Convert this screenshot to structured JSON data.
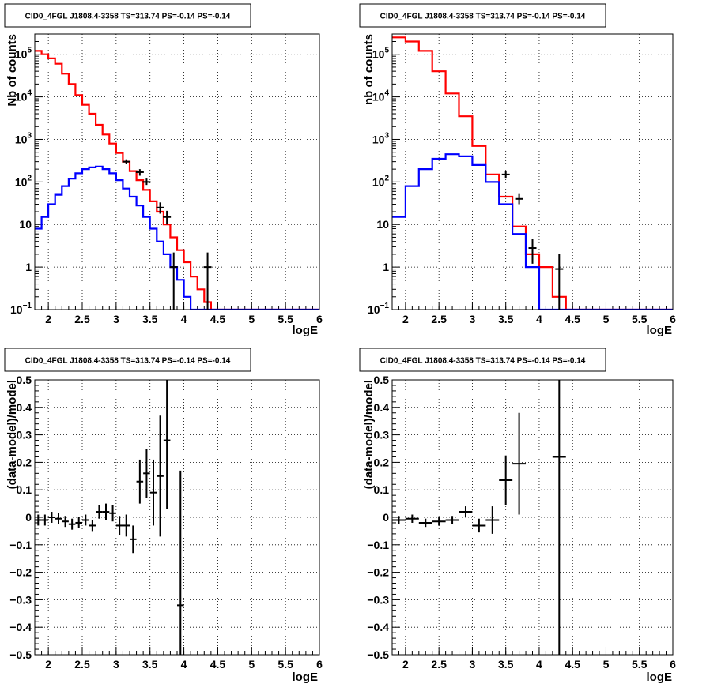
{
  "chart_data": [
    {
      "type": "line",
      "title": "CID0_4FGL J1808.4-3358 TS=313.74 PS=-0.14 PS=-0.14",
      "xlabel": "logE",
      "ylabel": "Nb of counts",
      "xlim": [
        1.8,
        6.0
      ],
      "ylim": [
        0.1,
        300000
      ],
      "yscale": "log",
      "grid": true,
      "x_ticks": [
        "2",
        "2.5",
        "3",
        "3.5",
        "4",
        "4.5",
        "5",
        "5.5",
        "6"
      ],
      "y_ticks": [
        {
          "base": "10",
          "exp": "−1"
        },
        {
          "base": "1",
          "exp": ""
        },
        {
          "base": "10",
          "exp": ""
        },
        {
          "base": "10",
          "exp": "2"
        },
        {
          "base": "10",
          "exp": "3"
        },
        {
          "base": "10",
          "exp": "4"
        },
        {
          "base": "10",
          "exp": "5"
        }
      ],
      "bin_edges": [
        1.8,
        1.9,
        2.0,
        2.1,
        2.2,
        2.3,
        2.4,
        2.5,
        2.6,
        2.7,
        2.8,
        2.9,
        3.0,
        3.1,
        3.2,
        3.3,
        3.4,
        3.5,
        3.6,
        3.7,
        3.8,
        3.9,
        4.0,
        4.1,
        4.2,
        4.3,
        4.4,
        4.5,
        4.6,
        4.7,
        4.8,
        4.9,
        5.0,
        5.1,
        5.2,
        5.3,
        5.4,
        5.5,
        5.6,
        5.7,
        5.8,
        5.9,
        6.0
      ],
      "series": [
        {
          "color": "#ff0000",
          "values": [
            120000,
            100000,
            80000,
            60000,
            35000,
            20000,
            11000,
            6500,
            4000,
            2200,
            1300,
            800,
            480,
            300,
            180,
            110,
            65,
            35,
            20,
            10,
            5,
            2.5,
            1.3,
            0.6,
            0.3,
            0.15,
            0.1,
            0.1,
            0.1,
            0.1,
            0.1,
            0.1,
            0.1,
            0.1,
            0.1,
            0.1,
            0.1,
            0.1,
            0.1,
            0.1,
            0.1,
            0.1
          ]
        },
        {
          "color": "#0000ff",
          "values": [
            8,
            15,
            30,
            50,
            80,
            120,
            160,
            200,
            220,
            230,
            200,
            160,
            110,
            70,
            45,
            28,
            15,
            8,
            4,
            2,
            1,
            0.5,
            0.2,
            0.1,
            0.1,
            0.1,
            0.1,
            0.1,
            0.1,
            0.1,
            0.1,
            0.1,
            0.1,
            0.1,
            0.1,
            0.1,
            0.1,
            0.1,
            0.1,
            0.1,
            0.1,
            0.1
          ]
        }
      ],
      "points": [
        {
          "x": 3.15,
          "y": 300,
          "ylo": 260,
          "yhi": 340
        },
        {
          "x": 3.35,
          "y": 170,
          "ylo": 140,
          "yhi": 200
        },
        {
          "x": 3.45,
          "y": 100,
          "ylo": 85,
          "yhi": 120
        },
        {
          "x": 3.65,
          "y": 25,
          "ylo": 18,
          "yhi": 33
        },
        {
          "x": 3.75,
          "y": 15,
          "ylo": 10,
          "yhi": 21
        },
        {
          "x": 3.85,
          "y": 1,
          "ylo": 0.1,
          "yhi": 2.2
        },
        {
          "x": 4.35,
          "y": 1,
          "ylo": 0.1,
          "yhi": 2.2
        }
      ]
    },
    {
      "type": "line",
      "title": "CID0_4FGL J1808.4-3358 TS=313.74 PS=-0.14 PS=-0.14",
      "xlabel": "logE",
      "ylabel": "nb of counts",
      "xlim": [
        1.8,
        6.0
      ],
      "ylim": [
        0.1,
        300000
      ],
      "yscale": "log",
      "grid": true,
      "x_ticks": [
        "2",
        "2.5",
        "3",
        "3.5",
        "4",
        "4.5",
        "5",
        "5.5",
        "6"
      ],
      "y_ticks": [
        {
          "base": "10",
          "exp": "−1"
        },
        {
          "base": "1",
          "exp": ""
        },
        {
          "base": "10",
          "exp": ""
        },
        {
          "base": "10",
          "exp": "2"
        },
        {
          "base": "10",
          "exp": "3"
        },
        {
          "base": "10",
          "exp": "4"
        },
        {
          "base": "10",
          "exp": "5"
        }
      ],
      "bin_edges": [
        1.8,
        2.0,
        2.2,
        2.4,
        2.6,
        2.8,
        3.0,
        3.2,
        3.4,
        3.6,
        3.8,
        4.0,
        4.2,
        4.4,
        4.6,
        4.8,
        5.0,
        5.2,
        5.4,
        5.6,
        5.8,
        6.0
      ],
      "series": [
        {
          "color": "#ff0000",
          "values": [
            250000,
            200000,
            120000,
            40000,
            12000,
            3500,
            700,
            150,
            45,
            9,
            2,
            1,
            0.2,
            0.1,
            0.1,
            0.1,
            0.1,
            0.1,
            0.1,
            0.1,
            0.1
          ]
        },
        {
          "color": "#0000ff",
          "values": [
            15,
            80,
            200,
            350,
            450,
            400,
            250,
            100,
            30,
            6,
            1,
            0.1,
            0.1,
            0.1,
            0.1,
            0.1,
            0.1,
            0.1,
            0.1,
            0.1,
            0.1
          ]
        }
      ],
      "points": [
        {
          "x": 3.5,
          "y": 150,
          "ylo": 120,
          "yhi": 180
        },
        {
          "x": 3.7,
          "y": 40,
          "ylo": 30,
          "yhi": 52
        },
        {
          "x": 3.9,
          "y": 2.8,
          "ylo": 1.2,
          "yhi": 4.5
        },
        {
          "x": 4.3,
          "y": 0.9,
          "ylo": 0.1,
          "yhi": 2.0
        }
      ]
    },
    {
      "type": "scatter",
      "title": "CID0_4FGL J1808.4-3358 TS=313.74 PS=-0.14 PS=-0.14",
      "xlabel": "logE",
      "ylabel": "(data-model)/model",
      "xlim": [
        1.8,
        6.0
      ],
      "ylim": [
        -0.5,
        0.5
      ],
      "yscale": "linear",
      "grid": true,
      "x_ticks": [
        "2",
        "2.5",
        "3",
        "3.5",
        "4",
        "4.5",
        "5",
        "5.5",
        "6"
      ],
      "y_ticks": [
        "−0.5",
        "−0.4",
        "−0.3",
        "−0.2",
        "−0.1",
        "0",
        "0.1",
        "0.2",
        "0.3",
        "0.4",
        "0.5"
      ],
      "xerr": 0.05,
      "points": [
        {
          "x": 1.85,
          "y": -0.01,
          "err": 0.02
        },
        {
          "x": 1.95,
          "y": -0.01,
          "err": 0.02
        },
        {
          "x": 2.05,
          "y": 0.0,
          "err": 0.02
        },
        {
          "x": 2.15,
          "y": -0.005,
          "err": 0.02
        },
        {
          "x": 2.25,
          "y": -0.015,
          "err": 0.02
        },
        {
          "x": 2.35,
          "y": -0.025,
          "err": 0.02
        },
        {
          "x": 2.45,
          "y": -0.02,
          "err": 0.02
        },
        {
          "x": 2.55,
          "y": -0.01,
          "err": 0.02
        },
        {
          "x": 2.65,
          "y": -0.03,
          "err": 0.02
        },
        {
          "x": 2.75,
          "y": 0.02,
          "err": 0.025
        },
        {
          "x": 2.85,
          "y": 0.02,
          "err": 0.03
        },
        {
          "x": 2.95,
          "y": 0.015,
          "err": 0.03
        },
        {
          "x": 3.05,
          "y": -0.03,
          "err": 0.035
        },
        {
          "x": 3.15,
          "y": -0.03,
          "err": 0.04
        },
        {
          "x": 3.25,
          "y": -0.08,
          "err": 0.05
        },
        {
          "x": 3.35,
          "y": 0.13,
          "err": 0.08
        },
        {
          "x": 3.45,
          "y": 0.16,
          "err": 0.09
        },
        {
          "x": 3.55,
          "y": 0.09,
          "err": 0.12
        },
        {
          "x": 3.65,
          "y": 0.15,
          "err": 0.22
        },
        {
          "x": 3.75,
          "y": 0.28,
          "err": 0.25
        },
        {
          "x": 3.95,
          "y": -0.32,
          "err": 0.49
        }
      ]
    },
    {
      "type": "scatter",
      "title": "CID0_4FGL J1808.4-3358 TS=313.74 PS=-0.14 PS=-0.14",
      "xlabel": "logE",
      "ylabel": "(data-model)/model",
      "xlim": [
        1.8,
        6.0
      ],
      "ylim": [
        -0.5,
        0.5
      ],
      "yscale": "linear",
      "grid": true,
      "x_ticks": [
        "2",
        "2.5",
        "3",
        "3.5",
        "4",
        "4.5",
        "5",
        "5.5",
        "6"
      ],
      "y_ticks": [
        "−0.5",
        "−0.4",
        "−0.3",
        "−0.2",
        "−0.1",
        "0",
        "0.1",
        "0.2",
        "0.3",
        "0.4",
        "0.5"
      ],
      "xerr": 0.1,
      "points": [
        {
          "x": 1.9,
          "y": -0.01,
          "err": 0.015
        },
        {
          "x": 2.1,
          "y": -0.005,
          "err": 0.015
        },
        {
          "x": 2.3,
          "y": -0.02,
          "err": 0.015
        },
        {
          "x": 2.5,
          "y": -0.015,
          "err": 0.015
        },
        {
          "x": 2.7,
          "y": -0.01,
          "err": 0.015
        },
        {
          "x": 2.9,
          "y": 0.02,
          "err": 0.02
        },
        {
          "x": 3.1,
          "y": -0.03,
          "err": 0.025
        },
        {
          "x": 3.3,
          "y": -0.01,
          "err": 0.05
        },
        {
          "x": 3.5,
          "y": 0.135,
          "err": 0.09
        },
        {
          "x": 3.7,
          "y": 0.195,
          "err": 0.185
        },
        {
          "x": 4.3,
          "y": 0.22,
          "err": 0.8
        }
      ]
    }
  ]
}
